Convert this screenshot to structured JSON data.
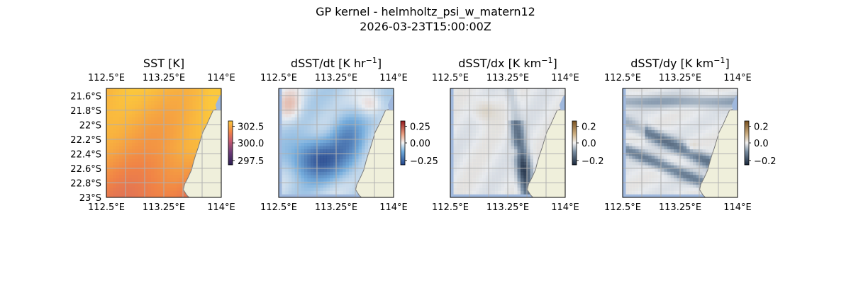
{
  "figure": {
    "title_line1": "GP kernel - helmholtz_psi_w_matern12",
    "title_line2": "2026-03-23T15:00:00Z"
  },
  "chart_data": [
    {
      "type": "heatmap",
      "title": "SST [K]",
      "title_sup": "",
      "title_tail": "",
      "x_ticks": [
        "112.5°E",
        "113.25°E",
        "114°E"
      ],
      "y_ticks": [
        "21.6°S",
        "21.8°S",
        "22°S",
        "22.2°S",
        "22.4°S",
        "22.6°S",
        "22.8°S",
        "23°S"
      ],
      "show_y_ticks": true,
      "xlim": [
        112.5,
        114.0
      ],
      "ylim": [
        -23.0,
        -21.5
      ],
      "colormap": "inferno-like",
      "colorbar_ticks": [
        "302.5",
        "300.0",
        "297.5"
      ],
      "field_range": [
        297.0,
        303.0
      ],
      "grid": true,
      "coastline": true
    },
    {
      "type": "heatmap",
      "title": "dSST/dt [K hr",
      "title_sup": "−1",
      "title_tail": "]",
      "x_ticks": [
        "112.5°E",
        "113.25°E",
        "114°E"
      ],
      "y_ticks": [],
      "show_y_ticks": false,
      "xlim": [
        112.5,
        114.0
      ],
      "ylim": [
        -23.0,
        -21.5
      ],
      "colormap": "diverging-blue-red",
      "colorbar_ticks": [
        "0.25",
        "0.00",
        "−0.25"
      ],
      "field_range": [
        -0.35,
        0.35
      ],
      "grid": true,
      "coastline": true
    },
    {
      "type": "heatmap",
      "title": "dSST/dx [K km",
      "title_sup": "−1",
      "title_tail": "]",
      "x_ticks": [
        "112.5°E",
        "113.25°E",
        "114°E"
      ],
      "y_ticks": [],
      "show_y_ticks": false,
      "xlim": [
        112.5,
        114.0
      ],
      "ylim": [
        -23.0,
        -21.5
      ],
      "colormap": "diverging-gray-brown",
      "colorbar_ticks": [
        "0.2",
        "0.0",
        "−0.2"
      ],
      "field_range": [
        -0.25,
        0.25
      ],
      "grid": true,
      "coastline": true
    },
    {
      "type": "heatmap",
      "title": "dSST/dy [K km",
      "title_sup": "−1",
      "title_tail": "]",
      "x_ticks": [
        "112.5°E",
        "113.25°E",
        "114°E"
      ],
      "y_ticks": [],
      "show_y_ticks": false,
      "xlim": [
        112.5,
        114.0
      ],
      "ylim": [
        -23.0,
        -21.5
      ],
      "colormap": "diverging-gray-brown",
      "colorbar_ticks": [
        "0.2",
        "0.0",
        "−0.2"
      ],
      "field_range": [
        -0.25,
        0.25
      ],
      "grid": true,
      "coastline": true
    }
  ],
  "colors": {
    "land": "#efefdb",
    "ocean": "#9fb8dd",
    "coastline": "#7a7a7a",
    "gridline": "#b0b0b0"
  }
}
